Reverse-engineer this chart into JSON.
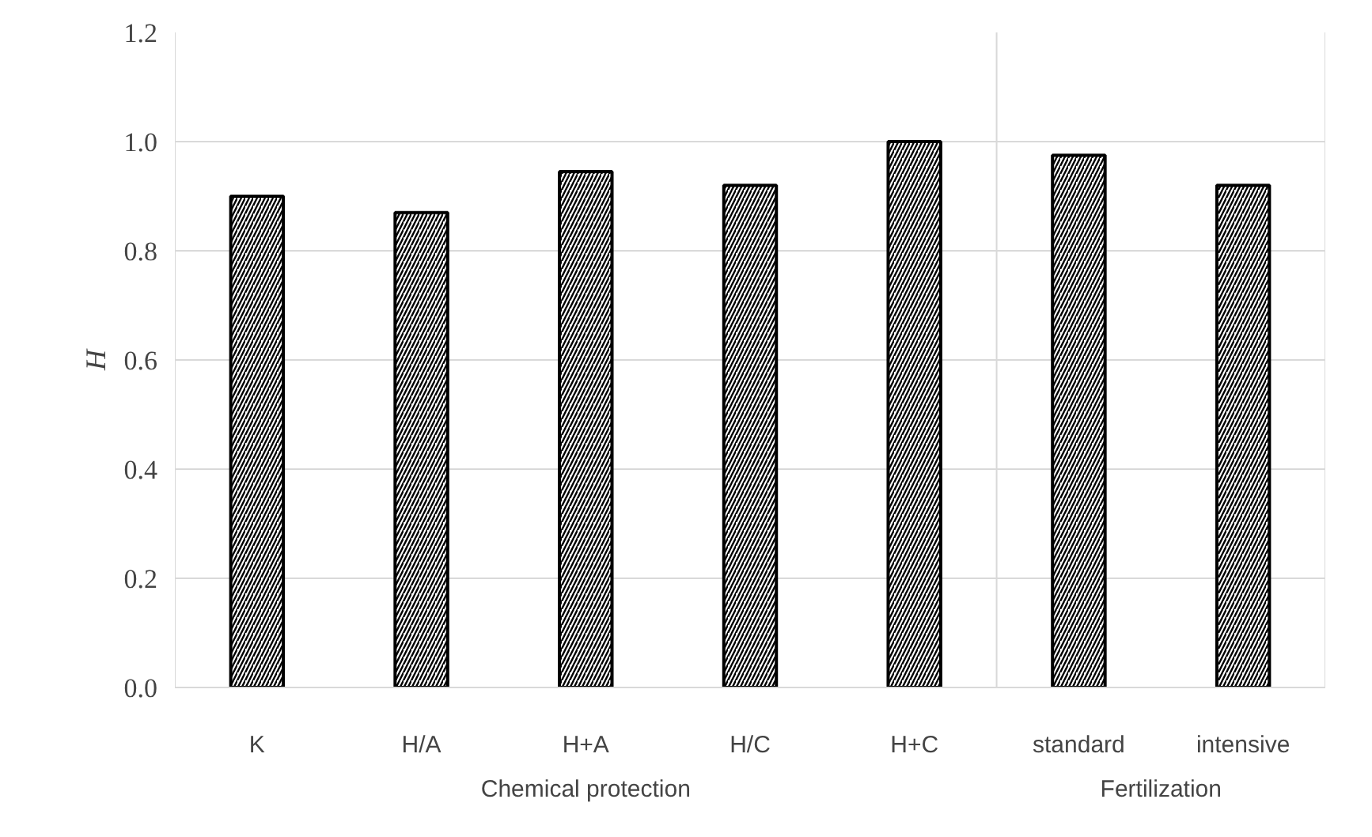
{
  "chart_data": {
    "type": "bar",
    "ylabel": "H",
    "categories": [
      "K",
      "H/A",
      "H+A",
      "H/C",
      "H+C",
      "standard",
      "intensive"
    ],
    "values": [
      0.9,
      0.87,
      0.945,
      0.92,
      1.0,
      0.975,
      0.92
    ],
    "color": "#000000",
    "ylim": [
      0,
      1.2
    ],
    "yticks": [
      {
        "value": 0,
        "label": "0.0"
      },
      {
        "value": 0.2,
        "label": "0.2"
      },
      {
        "value": 0.4,
        "label": "0.4"
      },
      {
        "value": 0.6,
        "label": "0.6"
      },
      {
        "value": 0.8,
        "label": "0.8"
      },
      {
        "value": 1.0,
        "label": "1.0"
      },
      {
        "value": 1.2,
        "label": "1.2"
      }
    ],
    "grid": "y",
    "annotations": [
      "Chemical protection",
      "Fertilization"
    ]
  }
}
